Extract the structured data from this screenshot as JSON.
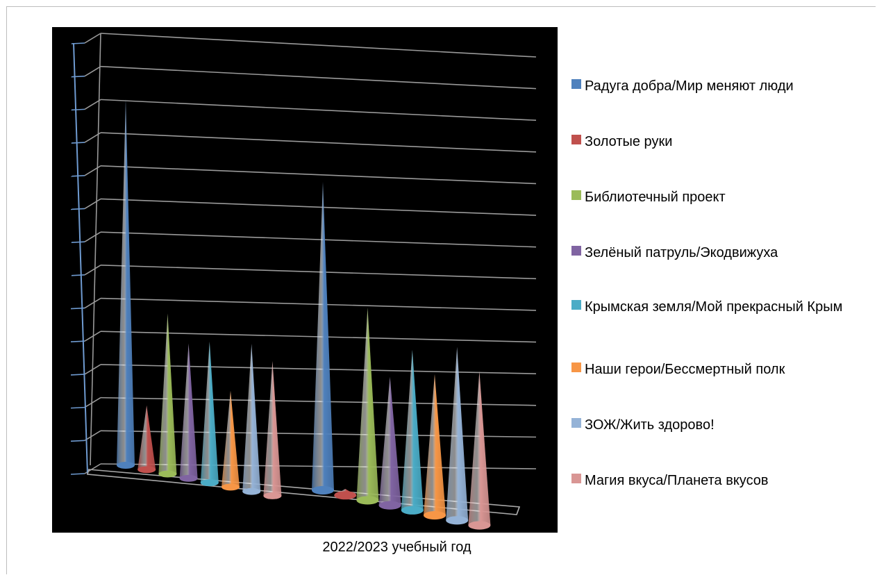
{
  "chart_data": {
    "type": "bar",
    "xlabel": "2022/2023 учебный год",
    "y_ticks": [
      "65",
      "60",
      "5",
      "5",
      "4",
      "4",
      "3",
      "3",
      "2",
      "2",
      "1"
    ],
    "ylim": [
      0,
      65
    ],
    "series": [
      {
        "name": "Радуга добра/Мир меняют люди",
        "color": "#4f81bd",
        "values": [
          57,
          48
        ]
      },
      {
        "name": "Золотые руки",
        "color": "#c0504d",
        "values": [
          10,
          1
        ]
      },
      {
        "name": "Библиотечный проект",
        "color": "#9bbb59",
        "values": [
          25,
          30
        ]
      },
      {
        "name": "Зелёный патруль/Экодвижуха",
        "color": "#8064a2",
        "values": [
          21,
          20
        ]
      },
      {
        "name": "Крымская земля/Мой прекрасный Крым",
        "color": "#4bacc6",
        "values": [
          22,
          25
        ]
      },
      {
        "name": "Наши герои/Бессмертный полк",
        "color": "#f79646",
        "values": [
          15,
          22
        ]
      },
      {
        "name": "ЗОЖ/Жить здорово!",
        "color": "#95b3d7",
        "values": [
          23,
          27
        ]
      },
      {
        "name": "Магия вкуса/Планета вкусов",
        "color": "#d99694",
        "values": [
          21,
          24
        ]
      }
    ]
  }
}
